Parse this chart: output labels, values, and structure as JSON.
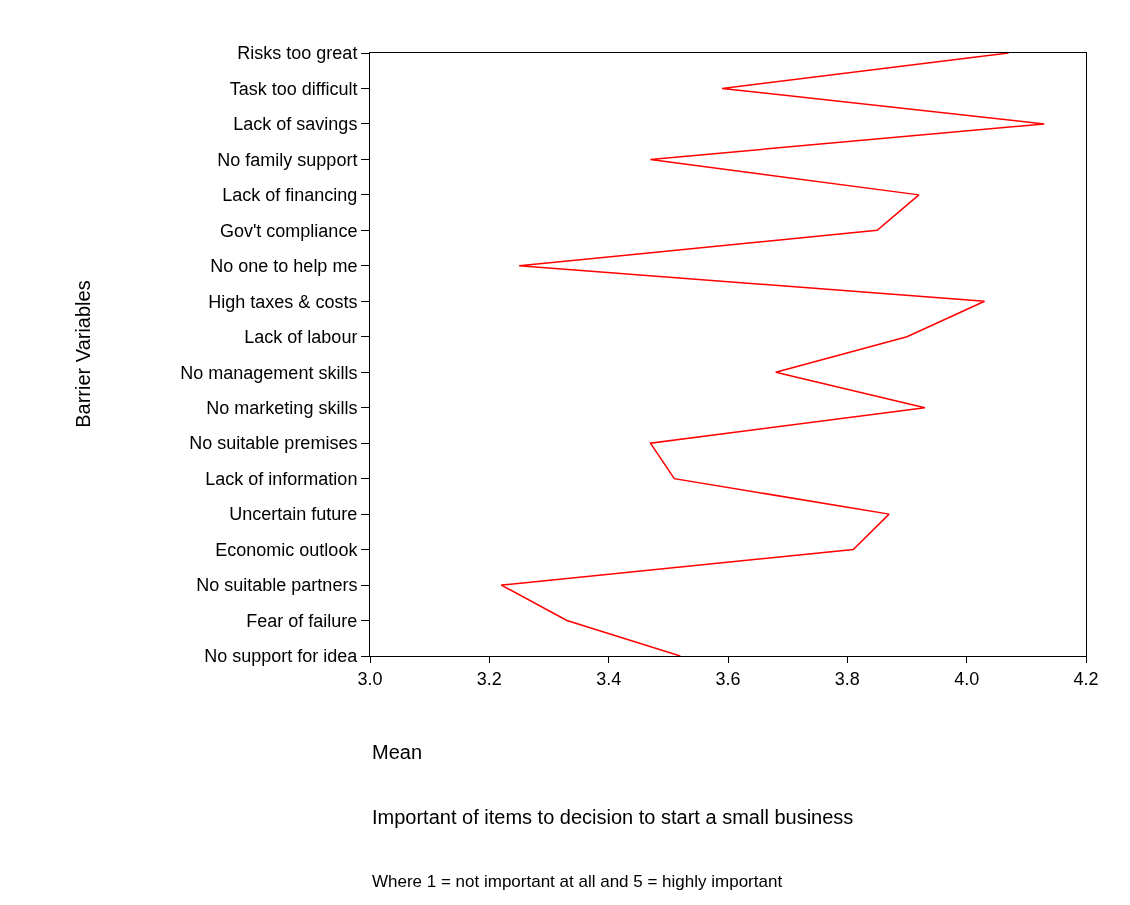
{
  "chart_data": {
    "type": "line",
    "orientation": "horizontal",
    "categories": [
      "Risks too great",
      "Task too difficult",
      "Lack of savings",
      "No family support",
      "Lack of financing",
      "Gov't compliance",
      "No one to help me",
      "High taxes & costs",
      "Lack of labour",
      "No management skills",
      "No marketing skills",
      "No suitable premises",
      "Lack of information",
      "Uncertain future",
      "Economic outlook",
      "No suitable partners",
      "Fear of failure",
      "No support for idea"
    ],
    "values": [
      4.07,
      3.59,
      4.13,
      3.47,
      3.92,
      3.85,
      3.25,
      4.03,
      3.9,
      3.68,
      3.93,
      3.47,
      3.51,
      3.87,
      3.81,
      3.22,
      3.33,
      3.52
    ],
    "color": "#ff0000",
    "xlim": [
      3.0,
      4.2
    ],
    "xticks": [
      {
        "value": 3.0,
        "label": "3.0"
      },
      {
        "value": 3.2,
        "label": "3.2"
      },
      {
        "value": 3.4,
        "label": "3.4"
      },
      {
        "value": 3.6,
        "label": "3.6"
      },
      {
        "value": 3.8,
        "label": "3.8"
      },
      {
        "value": 4.0,
        "label": "4.0"
      },
      {
        "value": 4.2,
        "label": "4.2"
      }
    ],
    "xlabel": "Mean",
    "ylabel": "Barrier Variables",
    "annotations": [
      "Important of items to decision to start a small business",
      "Where 1 = not important at all and 5 = highly important"
    ],
    "marker": "none",
    "line_style": "solid"
  }
}
